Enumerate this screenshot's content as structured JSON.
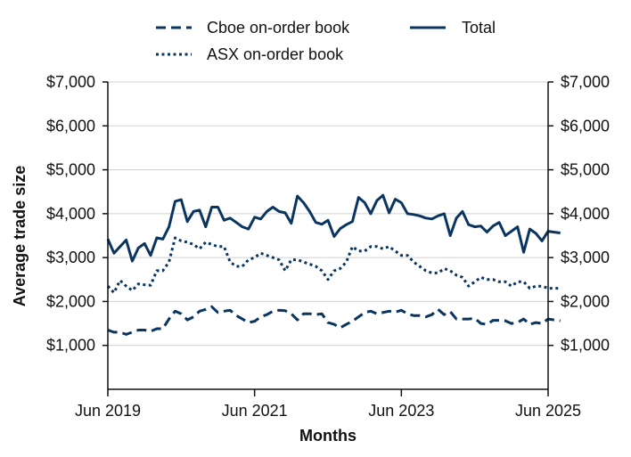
{
  "colors": {
    "series": "#0b3561",
    "grid": "#d0d0d0",
    "text": "#111111"
  },
  "chart_data": {
    "type": "line",
    "title": "",
    "xlabel": "Months",
    "ylabel": "Average trade size",
    "ylim": [
      0,
      7000
    ],
    "yticks": [
      1000,
      2000,
      3000,
      4000,
      5000,
      6000,
      7000
    ],
    "ytick_labels": [
      "$1,000",
      "$2,000",
      "$3,000",
      "$4,000",
      "$5,000",
      "$6,000",
      "$7,000"
    ],
    "xlim": [
      2019.4167,
      2025.4167
    ],
    "xticks": [
      2019.4167,
      2021.4167,
      2023.4167,
      2025.4167
    ],
    "xtick_labels": [
      "Jun 2019",
      "Jun 2021",
      "Jun 2023",
      "Jun 2025"
    ],
    "x_start": 2019.4167,
    "x_step": 0.0833333,
    "legend": {
      "position": "top",
      "columns": 2
    },
    "series": [
      {
        "name": "Cboe on-order book",
        "style": "dashed",
        "values": [
          1350,
          1300,
          1300,
          1250,
          1300,
          1350,
          1350,
          1320,
          1380,
          1380,
          1600,
          1780,
          1720,
          1580,
          1650,
          1780,
          1820,
          1880,
          1750,
          1780,
          1800,
          1680,
          1600,
          1520,
          1550,
          1650,
          1700,
          1780,
          1800,
          1790,
          1720,
          1580,
          1720,
          1720,
          1700,
          1720,
          1520,
          1480,
          1400,
          1480,
          1550,
          1650,
          1750,
          1780,
          1720,
          1750,
          1780,
          1760,
          1800,
          1720,
          1680,
          1680,
          1650,
          1700,
          1820,
          1700,
          1770,
          1600,
          1600,
          1600,
          1620,
          1500,
          1480,
          1570,
          1570,
          1560,
          1500,
          1520,
          1600,
          1480,
          1520,
          1500,
          1600,
          1580,
          1560
        ]
      },
      {
        "name": "ASX on-order book",
        "style": "dotted",
        "values": [
          2350,
          2200,
          2480,
          2350,
          2250,
          2400,
          2380,
          2370,
          2700,
          2700,
          2900,
          3450,
          3380,
          3350,
          3300,
          3200,
          3350,
          3300,
          3250,
          3250,
          2900,
          2800,
          2800,
          2950,
          3000,
          3100,
          3050,
          3000,
          2950,
          2700,
          2950,
          2950,
          2900,
          2850,
          2800,
          2700,
          2500,
          2700,
          2750,
          2900,
          3250,
          3150,
          3150,
          3250,
          3250,
          3200,
          3250,
          3150,
          3050,
          3050,
          2900,
          2800,
          2700,
          2650,
          2650,
          2750,
          2700,
          2600,
          2550,
          2350,
          2450,
          2550,
          2500,
          2500,
          2450,
          2450,
          2350,
          2450,
          2450,
          2300,
          2350,
          2350,
          2300,
          2300,
          2300
        ]
      },
      {
        "name": "Total",
        "style": "solid",
        "values": [
          3420,
          3100,
          3250,
          3400,
          2920,
          3220,
          3320,
          3050,
          3450,
          3420,
          3700,
          4280,
          4320,
          3820,
          4050,
          4080,
          3700,
          4150,
          4150,
          3850,
          3900,
          3800,
          3700,
          3650,
          3920,
          3880,
          4050,
          4150,
          4050,
          4020,
          3780,
          4400,
          4250,
          4050,
          3800,
          3760,
          3850,
          3480,
          3660,
          3750,
          3820,
          4370,
          4250,
          4000,
          4300,
          4420,
          4020,
          4330,
          4250,
          4000,
          3980,
          3950,
          3900,
          3880,
          3950,
          4000,
          3500,
          3900,
          4050,
          3750,
          3700,
          3720,
          3580,
          3720,
          3800,
          3500,
          3600,
          3700,
          3120,
          3650,
          3550,
          3380,
          3600,
          3580,
          3560
        ]
      }
    ]
  }
}
